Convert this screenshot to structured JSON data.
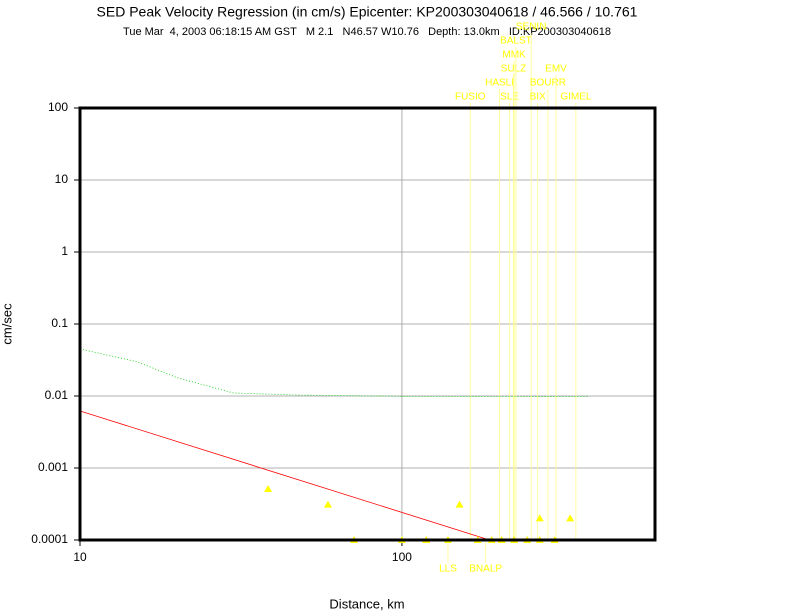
{
  "chart_data": {
    "type": "scatter",
    "title": "SED Peak Velocity Regression (in cm/s) Epicenter: KP200303040618 / 46.566 / 10.761",
    "subtitle": "Tue Mar  4, 2003 06:18:15 AM GST   M 2.1   N46.57 W10.76   Depth: 13.0km   ID:KP200303040618",
    "x_label": "Distance, km",
    "y_label": "cm/sec",
    "xlim": [
      10,
      611
    ],
    "ylim": [
      0.0001,
      100
    ],
    "xticks": [
      10,
      100
    ],
    "yticks": [
      100,
      10,
      1,
      0.1,
      0.01,
      0.001,
      0.0001
    ],
    "log_x": true,
    "log_y": true,
    "grid": true,
    "color": "#ffff00",
    "x": [
      38.4,
      58.9,
      151,
      268,
      333,
      71,
      100,
      119,
      139,
      172,
      190,
      204,
      223,
      245,
      268,
      298
    ],
    "values": [
      0.00051,
      0.00031,
      0.00031,
      0.0002,
      0.0002,
      0.0001,
      0.0001,
      0.0001,
      0.0001,
      0.0001,
      0.0001,
      0.0001,
      0.0001,
      0.0001,
      0.0001,
      0.0001
    ],
    "lines": [
      {
        "color": "#ff0000",
        "style": "solid",
        "x": [
          10,
          187
        ],
        "values": [
          0.0062,
          0.0001
        ]
      },
      {
        "color": "#00cc00",
        "style": "dotted",
        "x": [
          10,
          15,
          20,
          30,
          48,
          100,
          380
        ],
        "values": [
          0.045,
          0.03,
          0.018,
          0.011,
          0.0103,
          0.0099,
          0.0098
        ]
      }
    ],
    "stations": [
      {
        "name": "FUSIO",
        "distance": 163,
        "side": "top"
      },
      {
        "name": "HASLI",
        "distance": 201,
        "side": "top"
      },
      {
        "name": "SLE",
        "distance": 216,
        "side": "top"
      },
      {
        "name": "MMK",
        "distance": 223,
        "side": "top"
      },
      {
        "name": "SULZ",
        "distance": 222,
        "side": "top"
      },
      {
        "name": "BALST",
        "distance": 226,
        "side": "top"
      },
      {
        "name": "SENIN",
        "distance": 252,
        "side": "top"
      },
      {
        "name": "BIX",
        "distance": 264,
        "side": "top"
      },
      {
        "name": "BOURR",
        "distance": 284,
        "side": "top"
      },
      {
        "name": "EMV",
        "distance": 301,
        "side": "top"
      },
      {
        "name": "GIMEL",
        "distance": 347,
        "side": "top"
      },
      {
        "name": "LLS",
        "distance": 139,
        "side": "bottom"
      },
      {
        "name": "BNALP",
        "distance": 182,
        "side": "bottom"
      }
    ]
  }
}
